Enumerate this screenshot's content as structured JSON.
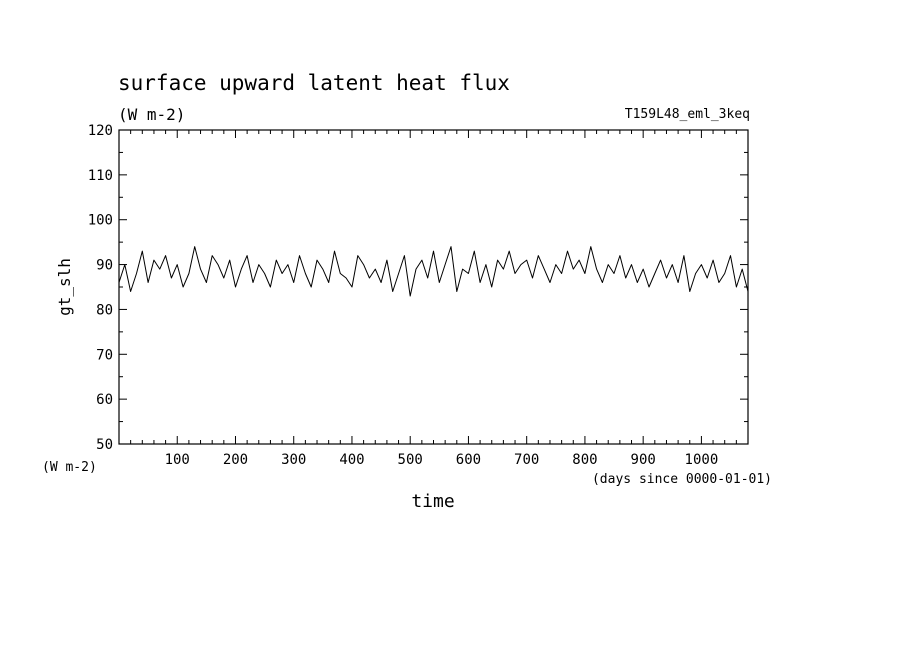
{
  "chart_data": {
    "type": "line",
    "title": "surface upward latent heat flux",
    "subtitle": "(W m-2)",
    "run_label": "T159L48_eml_3keq",
    "ylabel": "gt_slh",
    "y_unit_label": "(W m-2)",
    "xlabel": "time",
    "x_unit_label": "(days since 0000-01-01)",
    "xlim": [
      0,
      1080
    ],
    "ylim": [
      50,
      120
    ],
    "x_ticks": [
      100,
      200,
      300,
      400,
      500,
      600,
      700,
      800,
      900,
      1000
    ],
    "y_ticks": [
      50,
      60,
      70,
      80,
      90,
      100,
      110,
      120
    ],
    "grid": false,
    "line_color": "#000000",
    "series": [
      {
        "x": [
          0,
          10,
          20,
          30,
          40,
          50,
          60,
          70,
          80,
          90,
          100,
          110,
          120,
          130,
          140,
          150,
          160,
          170,
          180,
          190,
          200,
          210,
          220,
          230,
          240,
          250,
          260,
          270,
          280,
          290,
          300,
          310,
          320,
          330,
          340,
          350,
          360,
          370,
          380,
          390,
          400,
          410,
          420,
          430,
          440,
          450,
          460,
          470,
          480,
          490,
          500,
          510,
          520,
          530,
          540,
          550,
          560,
          570,
          580,
          590,
          600,
          610,
          620,
          630,
          640,
          650,
          660,
          670,
          680,
          690,
          700,
          710,
          720,
          730,
          740,
          750,
          760,
          770,
          780,
          790,
          800,
          810,
          820,
          830,
          840,
          850,
          860,
          870,
          880,
          890,
          900,
          910,
          920,
          930,
          940,
          950,
          960,
          970,
          980,
          990,
          1000,
          1010,
          1020,
          1030,
          1040,
          1050,
          1060,
          1070,
          1080
        ],
        "y": [
          86,
          90,
          84,
          88,
          93,
          86,
          91,
          89,
          92,
          87,
          90,
          85,
          88,
          94,
          89,
          86,
          92,
          90,
          87,
          91,
          85,
          89,
          92,
          86,
          90,
          88,
          85,
          91,
          88,
          90,
          86,
          92,
          88,
          85,
          91,
          89,
          86,
          93,
          88,
          87,
          85,
          92,
          90,
          87,
          89,
          86,
          91,
          84,
          88,
          92,
          83,
          89,
          91,
          87,
          93,
          86,
          90,
          94,
          84,
          89,
          88,
          93,
          86,
          90,
          85,
          91,
          89,
          93,
          88,
          90,
          91,
          87,
          92,
          89,
          86,
          90,
          88,
          93,
          89,
          91,
          88,
          94,
          89,
          86,
          90,
          88,
          92,
          87,
          90,
          86,
          89,
          85,
          88,
          91,
          87,
          90,
          86,
          92,
          84,
          88,
          90,
          87,
          91,
          86,
          88,
          92,
          85,
          89,
          84
        ]
      }
    ]
  }
}
